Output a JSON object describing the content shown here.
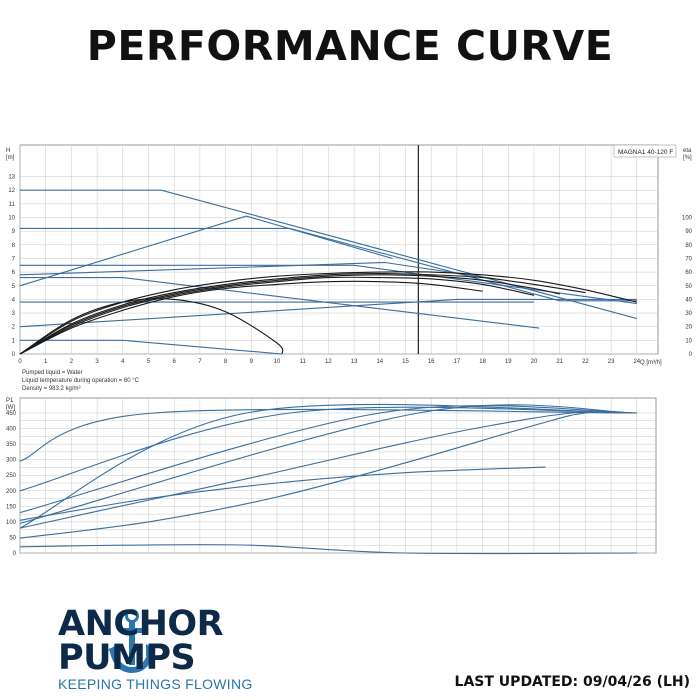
{
  "title": "PERFORMANCE CURVE",
  "footer": {
    "brand_line1": "ANCHOR",
    "brand_line2": "PUMPS",
    "tagline": "KEEPING THINGS FLOWING",
    "updated": "LAST UPDATED: 09/04/26 (LH)"
  },
  "colors": {
    "curve": "#3a6e9e",
    "efficiency": "#1a1a1a",
    "grid": "#c8c8c8",
    "brand": "#0e2a4a",
    "tagline": "#2a76ad"
  },
  "logo_icon": "anchor-icon",
  "chart_data": [
    {
      "type": "line",
      "legend_box": "MAGNA1 40-120 F",
      "ylabel_left": [
        "H",
        "[m]"
      ],
      "ylabel_right": [
        "eta",
        "[%]"
      ],
      "xlabel": "Q [m³/h]",
      "xlim": [
        0,
        25
      ],
      "ylim": [
        0,
        14
      ],
      "y2lim": [
        0,
        140
      ],
      "xticks": [
        0,
        1,
        2,
        3,
        4,
        5,
        6,
        7,
        8,
        9,
        10,
        11,
        12,
        13,
        14,
        15,
        16,
        17,
        18,
        19,
        20,
        21,
        22,
        23,
        24
      ],
      "yticks": [
        0,
        1,
        2,
        3,
        4,
        5,
        6,
        7,
        8,
        9,
        10,
        11,
        12,
        13
      ],
      "y2ticks": [
        0,
        10,
        20,
        30,
        40,
        50,
        60,
        70,
        80,
        90,
        100
      ],
      "duty_line_x": 15.5,
      "notes": [
        "Pumped liquid = Water",
        "Liquid temperature during operation = 60 °C",
        "Density = 983.2 kg/m³"
      ],
      "head_series": [
        {
          "x": [
            0,
            5.5,
            24
          ],
          "y": [
            12,
            12,
            2.6
          ]
        },
        {
          "x": [
            0,
            10.5,
            21,
            24
          ],
          "y": [
            9.2,
            9.2,
            3.9,
            3.9
          ]
        },
        {
          "x": [
            0,
            8.8,
            14.5
          ],
          "y": [
            5.0,
            10.1,
            7.0
          ]
        },
        {
          "x": [
            0,
            13,
            24
          ],
          "y": [
            6.5,
            6.5,
            3.7
          ]
        },
        {
          "x": [
            0,
            14.2,
            18.5
          ],
          "y": [
            5.8,
            6.7,
            5.5
          ]
        },
        {
          "x": [
            0,
            4,
            20.2
          ],
          "y": [
            5.6,
            5.6,
            1.9
          ]
        },
        {
          "x": [
            0,
            10,
            20
          ],
          "y": [
            3.8,
            3.8,
            3.8
          ]
        },
        {
          "x": [
            0,
            17,
            24
          ],
          "y": [
            2.0,
            4.0,
            4.0
          ]
        },
        {
          "x": [
            0,
            4,
            10.2
          ],
          "y": [
            1.0,
            1.0,
            0.0
          ]
        }
      ],
      "efficiency_series": [
        {
          "x": [
            0,
            2,
            4,
            6,
            8,
            10,
            12,
            14,
            16,
            18,
            20,
            22,
            24
          ],
          "y": [
            0,
            24,
            38,
            47,
            53,
            57,
            59,
            60,
            60,
            58,
            54,
            47,
            38
          ]
        },
        {
          "x": [
            0,
            2,
            4,
            6,
            8,
            10,
            12,
            14,
            16,
            18,
            20,
            22
          ],
          "y": [
            0,
            22,
            36,
            45,
            51,
            55,
            58,
            59,
            58,
            56,
            51,
            45
          ]
        },
        {
          "x": [
            0,
            2,
            4,
            6,
            8,
            10,
            12,
            14,
            16,
            18,
            20,
            21
          ],
          "y": [
            0,
            21,
            35,
            44,
            50,
            54,
            57,
            58,
            57,
            54,
            48,
            44
          ]
        },
        {
          "x": [
            0,
            2,
            4,
            6,
            8,
            10,
            12,
            14,
            16,
            18,
            20
          ],
          "y": [
            0,
            20,
            34,
            43,
            49,
            53,
            56,
            56,
            55,
            51,
            43
          ]
        },
        {
          "x": [
            0,
            2,
            4,
            6,
            8,
            10,
            12,
            14,
            16,
            18
          ],
          "y": [
            0,
            19,
            32,
            42,
            48,
            51,
            53,
            53,
            51,
            46
          ]
        },
        {
          "x": [
            0,
            2,
            4,
            6,
            8,
            10,
            10.2
          ],
          "y": [
            0,
            25,
            38,
            40,
            31,
            8,
            0
          ]
        }
      ]
    },
    {
      "type": "line",
      "ylabel_left": [
        "P1",
        "[W]"
      ],
      "xlim": [
        0,
        25
      ],
      "ylim": [
        0,
        500
      ],
      "yticks": [
        0,
        25,
        50,
        75,
        100,
        125,
        150,
        175,
        200,
        225,
        250,
        275,
        300,
        325,
        350,
        375,
        400,
        425,
        450
      ],
      "ytick_labels": [
        "0",
        "",
        "50",
        "",
        "100",
        "",
        "150",
        "",
        "200",
        "",
        "250",
        "",
        "300",
        "",
        "350",
        "",
        "400",
        "",
        "450"
      ],
      "power_series": [
        {
          "x": [
            0,
            5.2,
            24
          ],
          "y": [
            295,
            450,
            450
          ]
        },
        {
          "x": [
            0,
            10.5,
            24
          ],
          "y": [
            200,
            450,
            450
          ]
        },
        {
          "x": [
            0,
            8.8,
            24
          ],
          "y": [
            80,
            450,
            450
          ]
        },
        {
          "x": [
            0,
            14,
            24
          ],
          "y": [
            130,
            450,
            450
          ]
        },
        {
          "x": [
            0,
            15.5,
            24
          ],
          "y": [
            95,
            450,
            450
          ]
        },
        {
          "x": [
            0,
            5,
            10,
            14.5,
            18,
            21.5,
            24
          ],
          "y": [
            80,
            170,
            260,
            345,
            405,
            450,
            450
          ]
        },
        {
          "x": [
            0,
            5,
            10,
            15,
            20,
            22,
            24
          ],
          "y": [
            48,
            100,
            180,
            290,
            410,
            450,
            450
          ]
        },
        {
          "x": [
            0,
            5,
            10,
            15,
            20,
            20.2
          ],
          "y": [
            105,
            175,
            225,
            258,
            275,
            275
          ]
        },
        {
          "x": [
            0,
            4,
            9,
            15,
            24
          ],
          "y": [
            20,
            25,
            25,
            0,
            0
          ]
        }
      ]
    }
  ]
}
